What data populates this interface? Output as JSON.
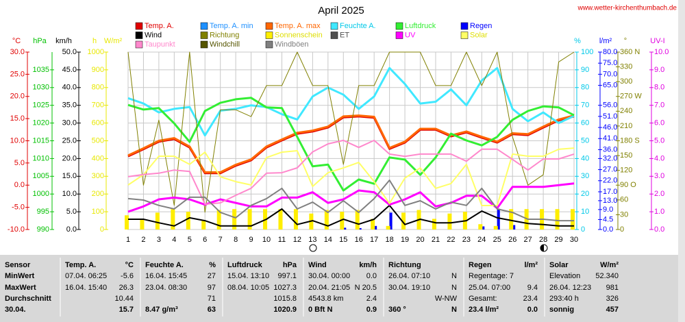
{
  "chart_data": {
    "type": "line",
    "title": "April 2025",
    "source": "www.wetter-kirchenthumbach.de",
    "x": [
      1,
      2,
      3,
      4,
      5,
      6,
      7,
      8,
      9,
      10,
      11,
      12,
      13,
      14,
      15,
      16,
      17,
      18,
      19,
      20,
      21,
      22,
      23,
      24,
      25,
      26,
      27,
      28,
      29,
      30
    ],
    "xlim": [
      1,
      30
    ],
    "xticks": [
      1,
      2,
      3,
      4,
      5,
      6,
      7,
      8,
      9,
      10,
      11,
      12,
      13,
      14,
      15,
      16,
      17,
      18,
      19,
      20,
      21,
      22,
      23,
      24,
      25,
      26,
      27,
      28,
      29,
      30
    ],
    "grid": true,
    "axes": [
      {
        "label": "°C",
        "color": "#e00000",
        "side": "left",
        "lim": [
          -10,
          30
        ],
        "ticks": [
          {
            "value": -10,
            "label": "-10.0"
          },
          {
            "value": -5,
            "label": "-5.0"
          },
          {
            "value": 0,
            "label": "0.0"
          },
          {
            "value": 5,
            "label": "5.0"
          },
          {
            "value": 10,
            "label": "10.0"
          },
          {
            "value": 15,
            "label": "15.0"
          },
          {
            "value": 20,
            "label": "20.0"
          },
          {
            "value": 25,
            "label": "25.0"
          },
          {
            "value": 30,
            "label": "30.0"
          }
        ]
      },
      {
        "label": "hPa",
        "color": "#00c000",
        "side": "left",
        "lim": [
          990,
          1040
        ],
        "ticks": [
          990,
          995,
          1000,
          1005,
          1010,
          1015,
          1020,
          1025,
          1030,
          1035
        ]
      },
      {
        "label": "km/h",
        "color": "#000000",
        "side": "left",
        "lim": [
          0,
          50
        ],
        "ticks": [
          {
            "value": 0,
            "label": "0.0"
          },
          {
            "value": 5,
            "label": "5.0"
          },
          {
            "value": 10,
            "label": "10.0"
          },
          {
            "value": 15,
            "label": "15.0"
          },
          {
            "value": 20,
            "label": "20.0"
          },
          {
            "value": 25,
            "label": "25.0"
          },
          {
            "value": 30,
            "label": "30.0"
          },
          {
            "value": 35,
            "label": "35.0"
          },
          {
            "value": 40,
            "label": "40.0"
          },
          {
            "value": 45,
            "label": "45.0"
          },
          {
            "value": 50,
            "label": "50.0"
          }
        ]
      },
      {
        "label": "W/m²",
        "label2": "h",
        "color": "#e8e800",
        "side": "left",
        "lim": [
          0,
          1000
        ],
        "ticks": [
          0,
          100,
          200,
          300,
          400,
          500,
          600,
          700,
          800,
          900,
          1000
        ]
      },
      {
        "label": "%",
        "color": "#00c8e8",
        "side": "right",
        "lim": [
          0,
          100
        ],
        "ticks": [
          0,
          10,
          20,
          30,
          40,
          50,
          60,
          70,
          80,
          90,
          100
        ]
      },
      {
        "label": "l/m²",
        "color": "#0000ff",
        "side": "right",
        "lim": [
          0,
          80
        ],
        "ticks": [
          {
            "value": 0,
            "label": "0.0"
          },
          4.5,
          {
            "value": 9,
            "label": "9.0"
          },
          {
            "value": 13,
            "label": "13.0"
          },
          {
            "value": 17,
            "label": "17.0"
          },
          {
            "value": 22,
            "label": "22.0"
          },
          {
            "value": 27,
            "label": "27.0"
          },
          {
            "value": 32,
            "label": "32.0"
          },
          {
            "value": 36,
            "label": "36.0"
          },
          {
            "value": 41,
            "label": "41.0"
          },
          {
            "value": 46,
            "label": "46.0"
          },
          {
            "value": 51,
            "label": "51.0"
          },
          {
            "value": 56,
            "label": "56.0"
          },
          {
            "value": 65,
            "label": "65.0"
          },
          {
            "value": 70,
            "label": "70.0"
          },
          {
            "value": 75,
            "label": "75.0"
          },
          {
            "value": 80,
            "label": "80.0"
          }
        ]
      },
      {
        "label": "°",
        "color": "#808000",
        "side": "right",
        "lim": [
          0,
          360
        ],
        "ticks": [
          0,
          30,
          60,
          {
            "value": 90,
            "label": "90 O"
          },
          120,
          150,
          {
            "value": 180,
            "label": "180 S"
          },
          210,
          240,
          {
            "value": 270,
            "label": "270 W"
          },
          300,
          330,
          {
            "value": 360,
            "label": "360 N"
          }
        ]
      },
      {
        "label": "UV-I",
        "color": "#e000e0",
        "side": "right",
        "lim": [
          0,
          10
        ],
        "ticks": [
          {
            "value": 0,
            "label": "0.0"
          },
          {
            "value": 1,
            "label": "1.0"
          },
          {
            "value": 2,
            "label": "2.0"
          },
          {
            "value": 3,
            "label": "3.0"
          },
          {
            "value": 4,
            "label": "4.0"
          },
          {
            "value": 5,
            "label": "5.0"
          },
          {
            "value": 6,
            "label": "6.0"
          },
          {
            "value": 7,
            "label": "7.0"
          },
          {
            "value": 8,
            "label": "8.0"
          },
          {
            "value": 9,
            "label": "9.0"
          },
          {
            "value": 10,
            "label": "10.0"
          }
        ]
      }
    ],
    "series": [
      {
        "name": "Temp. A.",
        "color": "#e00000",
        "axis": 0,
        "type": "line",
        "width": 3,
        "values": [
          6.5,
          8.1,
          9.8,
          10.4,
          8.5,
          2.7,
          2.7,
          4.4,
          5.6,
          8.5,
          10.1,
          11.6,
          12.1,
          13.0,
          15.3,
          15.5,
          15.2,
          8.2,
          9.6,
          12.5,
          12.5,
          11.0,
          11.9,
          10.7,
          9.6,
          11.5,
          11.3,
          13.0,
          14.6,
          15.5
        ]
      },
      {
        "name": "Temp. A. min",
        "color": "#1e90ff",
        "axis": 0,
        "type": "line",
        "width": 2,
        "values": [
          null,
          null,
          null,
          null,
          null,
          null,
          null,
          null,
          null,
          null,
          null,
          null,
          null,
          null,
          null,
          null,
          null,
          null,
          null,
          null,
          null,
          null,
          null,
          null,
          null,
          null,
          null,
          null,
          null,
          null
        ]
      },
      {
        "name": "Temp. A. max",
        "color": "#ff6600",
        "axis": 0,
        "type": "line",
        "width": 3,
        "values": [
          6.7,
          8.3,
          10.0,
          10.6,
          8.7,
          2.9,
          2.9,
          4.6,
          5.8,
          8.7,
          10.3,
          11.8,
          12.3,
          13.2,
          15.5,
          15.7,
          15.4,
          8.4,
          9.8,
          12.7,
          12.7,
          11.2,
          12.1,
          10.9,
          9.8,
          11.7,
          11.5,
          13.2,
          14.8,
          15.7
        ]
      },
      {
        "name": "Feuchte A.",
        "color": "#40e8ff",
        "axis": 4,
        "type": "line",
        "width": 3,
        "values": [
          74,
          71,
          66,
          68,
          69,
          53,
          67,
          68,
          70,
          69,
          65,
          62,
          75,
          80,
          76,
          68,
          75,
          91,
          82,
          71,
          72,
          79,
          70,
          84,
          91,
          68,
          61,
          66,
          60,
          64
        ]
      },
      {
        "name": "Luftdruck",
        "color": "#33ee33",
        "axis": 1,
        "type": "line",
        "width": 3,
        "values": [
          1025.1,
          1023.8,
          1024.2,
          1019.9,
          1014.7,
          1023.4,
          1025.7,
          1026.7,
          1027.1,
          1024.4,
          1024.2,
          1016.1,
          1007.8,
          1008.3,
          1001.0,
          1004.1,
          1002.9,
          1010.3,
          1009.7,
          1005.4,
          1010.3,
          1017.0,
          1015.1,
          1013.7,
          1016.1,
          1020.9,
          1023.4,
          1024.7,
          1024.4,
          1022.2
        ]
      },
      {
        "name": "Regen",
        "color": "#0000ff",
        "axis": 5,
        "type": "bar",
        "values": [
          0,
          0,
          0,
          0,
          0,
          0,
          0,
          0,
          0,
          0,
          0,
          0,
          0,
          0,
          0.8,
          0.6,
          1.6,
          7.6,
          0,
          0,
          0,
          0,
          0,
          1.4,
          9.4,
          2.0,
          0,
          0,
          0,
          0
        ]
      },
      {
        "name": "Wind",
        "color": "#000000",
        "axis": 2,
        "type": "line",
        "width": 2,
        "values": [
          2.9,
          2.9,
          1.9,
          1.0,
          3.3,
          2.5,
          1.0,
          1.0,
          1.0,
          2.9,
          5.8,
          1.4,
          2.5,
          1.0,
          2.9,
          1.5,
          2.9,
          6.8,
          1.4,
          2.9,
          1.9,
          1.9,
          2.5,
          5.2,
          3.3,
          2.5,
          1.7,
          1.4,
          1.0,
          1.0
        ]
      },
      {
        "name": "Richtung",
        "color": "#808000",
        "axis": 6,
        "type": "line",
        "width": 1,
        "values": [
          360,
          90,
          222,
          49,
          360,
          35,
          243,
          243,
          229,
          292,
          292,
          360,
          292,
          292,
          132,
          292,
          292,
          360,
          360,
          360,
          292,
          292,
          360,
          292,
          360,
          188,
          90,
          111,
          340,
          360
        ]
      },
      {
        "name": "Sonnenschein",
        "color": "#ffee00",
        "axis": 3,
        "type": "bar",
        "values": [
          80,
          60,
          95,
          115,
          100,
          50,
          110,
          115,
          115,
          115,
          115,
          115,
          90,
          110,
          100,
          110,
          60,
          20,
          95,
          110,
          60,
          90,
          100,
          30,
          20,
          115,
          115,
          115,
          115,
          115
        ]
      },
      {
        "name": "ET",
        "color": "#505050",
        "axis": 5,
        "type": "line",
        "width": 2,
        "values": [
          null,
          null,
          null,
          null,
          null,
          null,
          null,
          null,
          null,
          null,
          null,
          null,
          null,
          null,
          null,
          null,
          null,
          null,
          null,
          null,
          null,
          null,
          null,
          null,
          null,
          null,
          null,
          null,
          null,
          null
        ]
      },
      {
        "name": "UV",
        "color": "#ff00ff",
        "axis": 7,
        "type": "line",
        "width": 3,
        "values": [
          1.0,
          1.3,
          1.7,
          1.8,
          1.7,
          1.4,
          1.7,
          1.5,
          1.3,
          1.3,
          1.8,
          1.8,
          2.1,
          1.5,
          1.7,
          2.2,
          2.1,
          1.4,
          1.7,
          2.1,
          1.3,
          1.5,
          1.9,
          1.9,
          1.2,
          2.4,
          2.4,
          2.4,
          2.5,
          2.6
        ]
      },
      {
        "name": "Solar",
        "color": "#ffff66",
        "axis": 3,
        "type": "line",
        "width": 2,
        "values": [
          251,
          309,
          413,
          413,
          367,
          436,
          297,
          270,
          251,
          405,
          436,
          444,
          243,
          320,
          347,
          378,
          270,
          147,
          290,
          347,
          232,
          259,
          367,
          135,
          135,
          425,
          413,
          413,
          452,
          459
        ]
      },
      {
        "name": "Taupunkt",
        "color": "#ff88cc",
        "axis": 0,
        "type": "line",
        "width": 2,
        "values": [
          1.9,
          2.4,
          2.7,
          3.4,
          3.1,
          -4.3,
          -4.0,
          -2.3,
          -0.7,
          2.7,
          2.8,
          3.9,
          7.5,
          9.3,
          10.1,
          8.5,
          10.1,
          7.0,
          6.5,
          7.0,
          7.0,
          7.0,
          5.4,
          8.1,
          8.1,
          5.8,
          3.4,
          5.9,
          5.9,
          7.0
        ]
      },
      {
        "name": "Windchill",
        "color": "#555500",
        "axis": 0,
        "type": "line",
        "width": 2,
        "values": [
          null,
          null,
          null,
          null,
          null,
          null,
          null,
          null,
          null,
          null,
          null,
          null,
          null,
          null,
          null,
          null,
          null,
          null,
          null,
          null,
          null,
          null,
          null,
          null,
          null,
          null,
          null,
          null,
          null,
          null
        ]
      },
      {
        "name": "Windböen",
        "color": "#808080",
        "axis": 2,
        "type": "line",
        "width": 2,
        "values": [
          8.7,
          8.3,
          6.8,
          5.8,
          9.1,
          9.1,
          4.8,
          3.3,
          6.8,
          8.7,
          11.6,
          5.8,
          7.7,
          4.8,
          8.1,
          4.8,
          8.7,
          13.9,
          6.8,
          8.1,
          5.8,
          7.7,
          6.8,
          11.6,
          5.8,
          4.8,
          2.9,
          2.9,
          2.5,
          2.5
        ]
      }
    ]
  },
  "stats": {
    "sections": [
      {
        "name": "Sensor",
        "rows": [
          {
            "left": "MinWert"
          },
          {
            "left": "MaxWert"
          },
          {
            "left": "Durchschnitt"
          },
          {
            "left": "30.04."
          }
        ]
      },
      {
        "name": "Temp. A.",
        "unit": "°C",
        "rows": [
          {
            "left": "07.04.  06:25",
            "right": "-5.6"
          },
          {
            "left": "16.04.  15:40",
            "right": "26.3"
          },
          {
            "right": "10.44"
          },
          {
            "right": "15.7"
          }
        ]
      },
      {
        "name": "Feuchte A.",
        "unit": "%",
        "rows": [
          {
            "left": "16.04.  15:45",
            "right": "27"
          },
          {
            "left": "23.04.  08:30",
            "right": "97"
          },
          {
            "right": "71"
          },
          {
            "left": "8.47 g/m³",
            "right": "63"
          }
        ]
      },
      {
        "name": "Luftdruck",
        "unit": "hPa",
        "rows": [
          {
            "left": "15.04.  13:10",
            "right": "997.1"
          },
          {
            "left": "08.04.  10:05",
            "right": "1027.3"
          },
          {
            "right": "1015.8"
          },
          {
            "right": "1020.9"
          }
        ]
      },
      {
        "name": "Wind",
        "unit": "km/h",
        "rows": [
          {
            "left": "30.04.  00:00",
            "right": "0.0"
          },
          {
            "left": "20.04.  21:05",
            "right": "N 20.5"
          },
          {
            "left": "4543.8 km",
            "right": "2.4"
          },
          {
            "left": "0 Bft N",
            "right": "0.9"
          }
        ]
      },
      {
        "name": "Richtung",
        "rows": [
          {
            "left": "26.04.  07:10",
            "right": "N"
          },
          {
            "left": "30.04.  19:10",
            "right": "N"
          },
          {
            "right": "W-NW"
          },
          {
            "left": "360 °",
            "right": "N"
          }
        ]
      },
      {
        "name": "Regen",
        "unit": "l/m²",
        "rows": [
          {
            "left": "Regentage: 7"
          },
          {
            "left": "25.04.  07:00",
            "right": "9.4"
          },
          {
            "left": "Gesamt:",
            "right": "23.4"
          },
          {
            "left": "23.4 l/m²",
            "right": "0.0"
          }
        ]
      },
      {
        "name": "Solar",
        "unit": "W/m²",
        "rows": [
          {
            "left": "Elevation",
            "right": "52.340"
          },
          {
            "left": "26.04.  12:23",
            "right": "981"
          },
          {
            "left": "293:40 h",
            "right": "326"
          },
          {
            "left": "sonnig",
            "right": "457"
          }
        ]
      }
    ]
  }
}
